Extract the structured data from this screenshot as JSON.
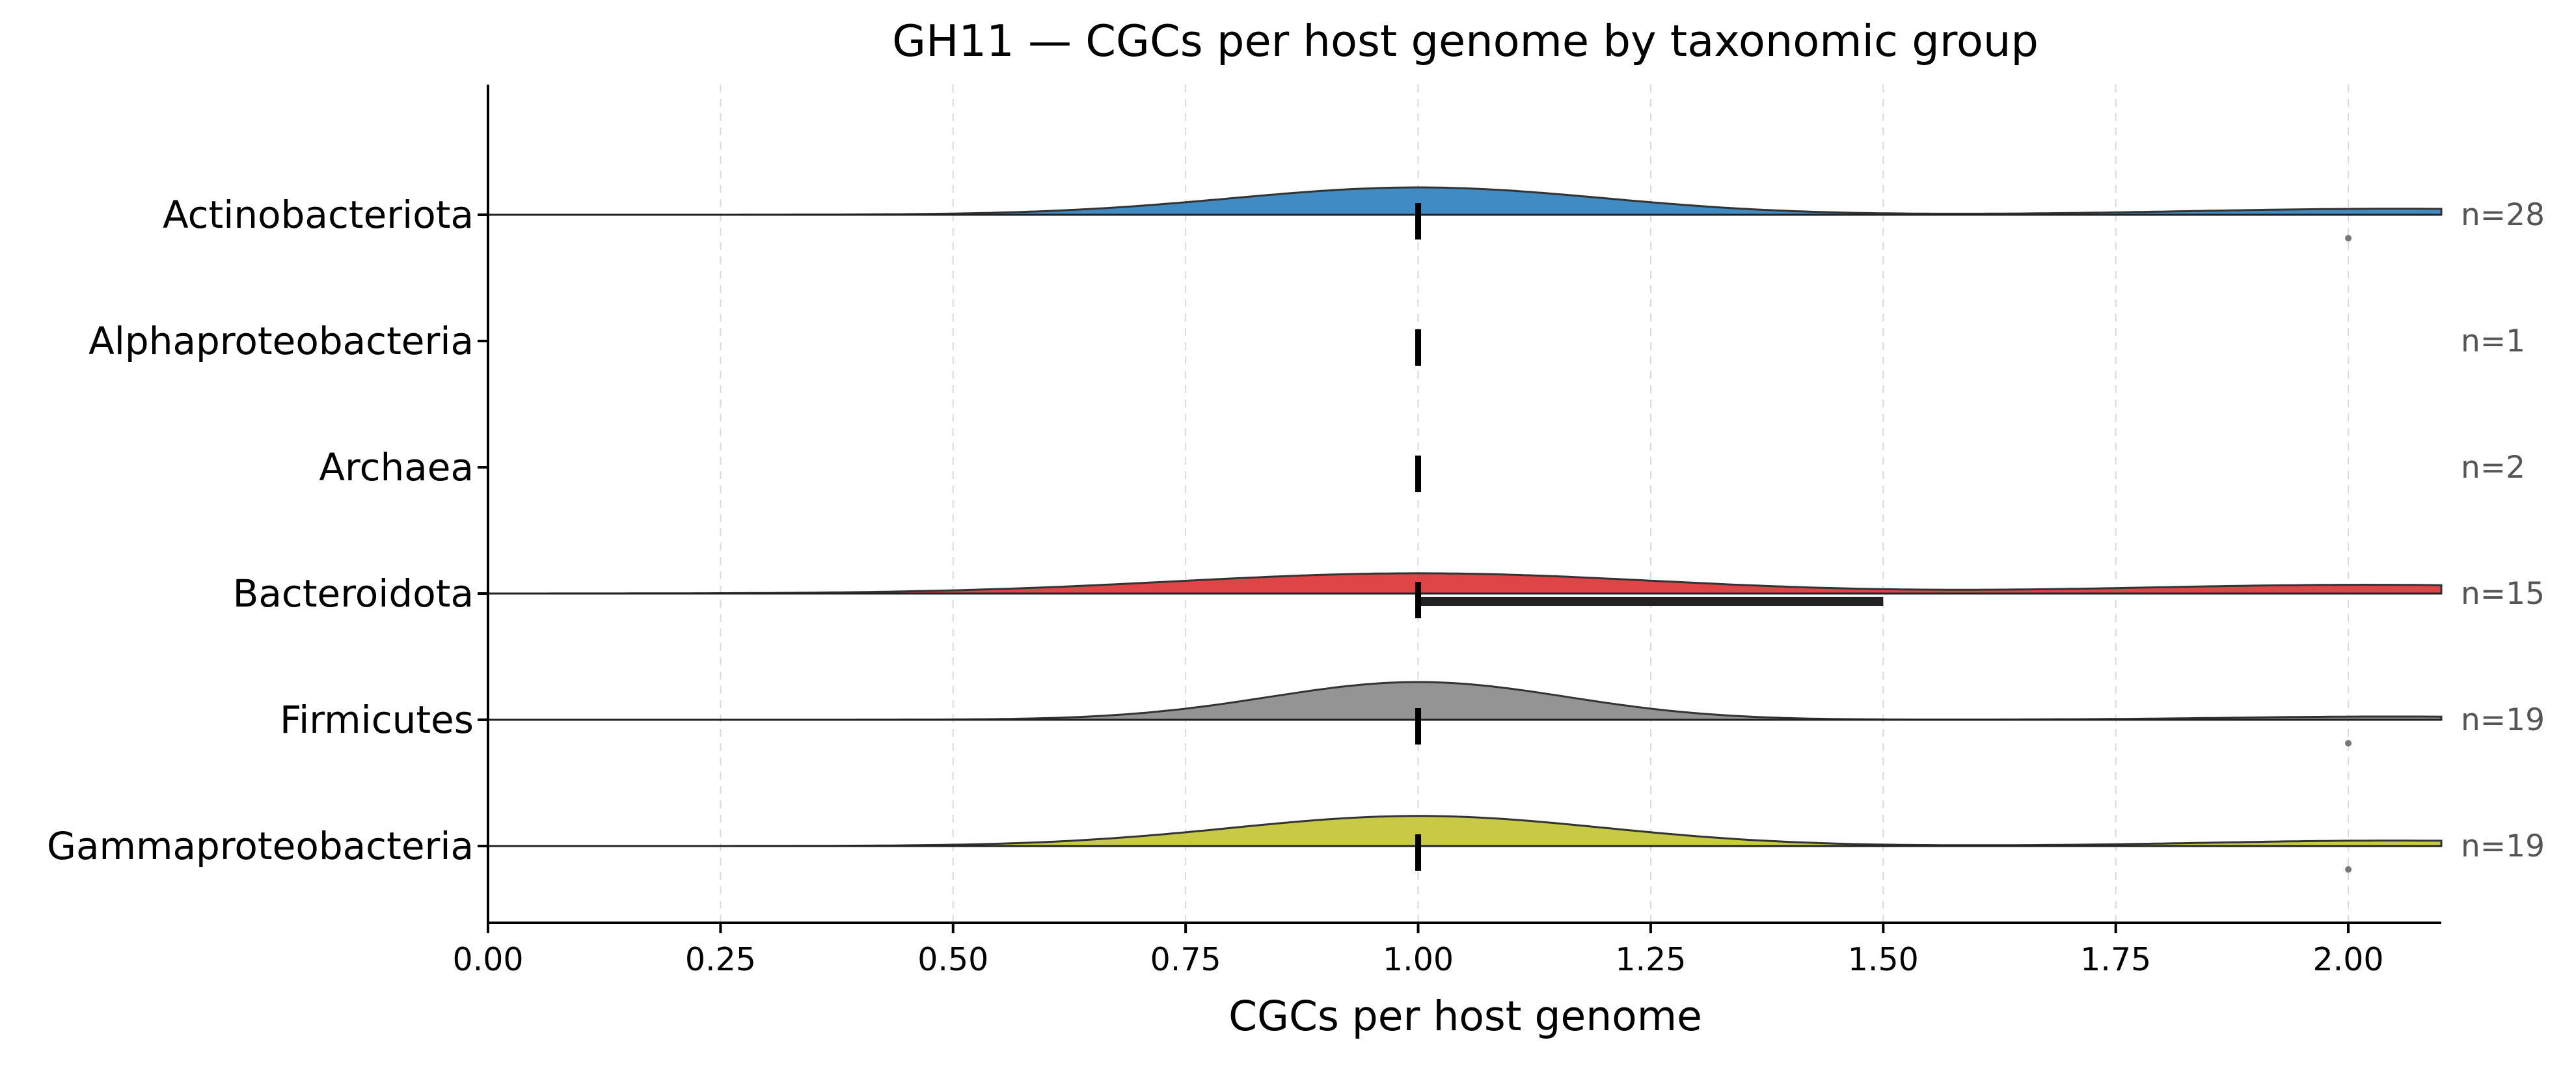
{
  "chart_data": {
    "type": "ridgeline",
    "title": "GH11 — CGCs per host genome by taxonomic group",
    "xlabel": "CGCs per host genome",
    "ylabel": "",
    "xlim": [
      0,
      2.1
    ],
    "x_ticks": [
      "0.00",
      "0.25",
      "0.50",
      "0.75",
      "1.00",
      "1.25",
      "1.50",
      "1.75",
      "2.00"
    ],
    "grid": "vertical dashed",
    "groups": [
      {
        "name": "Actinobacteriota",
        "n_label": "n=28",
        "color": "#3f8bc2",
        "density": true,
        "peak1": 1.0,
        "sigma1": 0.2,
        "height1": 1.0,
        "peak2": 2.05,
        "sigma2": 0.22,
        "height2": 0.22,
        "median": 1.0,
        "q1": 1.0,
        "q3": 1.0,
        "outliers": [
          2.0
        ]
      },
      {
        "name": "Alphaproteobacteria",
        "n_label": "n=1",
        "color": "#000000",
        "density": false,
        "median": 1.0,
        "q1": 1.0,
        "q3": 1.0,
        "outliers": []
      },
      {
        "name": "Archaea",
        "n_label": "n=2",
        "color": "#000000",
        "density": false,
        "median": 1.0,
        "q1": 1.0,
        "q3": 1.0,
        "outliers": []
      },
      {
        "name": "Bacteroidota",
        "n_label": "n=15",
        "color": "#df4446",
        "density": true,
        "peak1": 1.0,
        "sigma1": 0.26,
        "height1": 0.74,
        "peak2": 2.02,
        "sigma2": 0.26,
        "height2": 0.32,
        "median": 1.0,
        "q1": 1.0,
        "q3": 1.5,
        "outliers": []
      },
      {
        "name": "Firmicutes",
        "n_label": "n=19",
        "color": "#949494",
        "density": true,
        "peak1": 1.0,
        "sigma1": 0.16,
        "height1": 1.38,
        "peak2": 2.05,
        "sigma2": 0.18,
        "height2": 0.12,
        "median": 1.0,
        "q1": 1.0,
        "q3": 1.0,
        "outliers": [
          2.0
        ]
      },
      {
        "name": "Gammaproteobacteria",
        "n_label": "n=19",
        "color": "#c8c944",
        "density": true,
        "peak1": 1.0,
        "sigma1": 0.2,
        "height1": 1.1,
        "peak2": 2.05,
        "sigma2": 0.2,
        "height2": 0.2,
        "median": 1.0,
        "q1": 1.0,
        "q3": 1.0,
        "outliers": [
          2.0
        ]
      }
    ]
  }
}
